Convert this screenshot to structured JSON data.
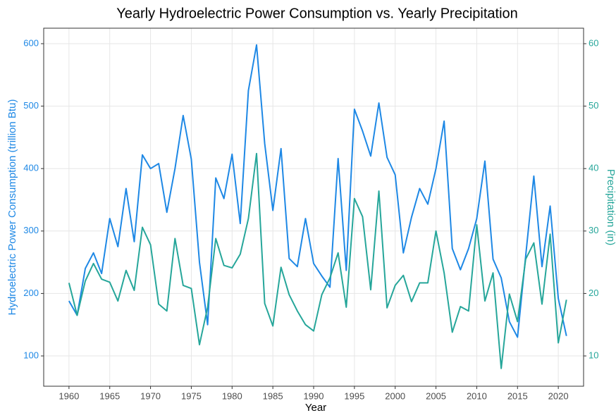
{
  "chart_data": {
    "type": "line",
    "title": "Yearly Hydroelectric Power Consumption vs. Yearly Precipitation",
    "x_label": "Year",
    "y_label": "Hydroelectric Power Consumption (trillion Btu)",
    "y2_label": "Precipitation (in)",
    "x": [
      1960,
      1961,
      1962,
      1963,
      1964,
      1965,
      1966,
      1967,
      1968,
      1969,
      1970,
      1971,
      1972,
      1973,
      1974,
      1975,
      1976,
      1977,
      1978,
      1979,
      1980,
      1981,
      1982,
      1983,
      1984,
      1985,
      1986,
      1987,
      1988,
      1989,
      1990,
      1991,
      1992,
      1993,
      1994,
      1995,
      1996,
      1997,
      1998,
      1999,
      2000,
      2001,
      2002,
      2003,
      2004,
      2005,
      2006,
      2007,
      2008,
      2009,
      2010,
      2011,
      2012,
      2013,
      2014,
      2015,
      2016,
      2017,
      2018,
      2019,
      2020,
      2021
    ],
    "series": [
      {
        "name": "Hydroelectric Power Consumption",
        "color": "#1e88e5",
        "axis": "y",
        "values": [
          188,
          165,
          240,
          265,
          232,
          320,
          275,
          368,
          283,
          422,
          400,
          408,
          330,
          400,
          485,
          415,
          250,
          150,
          385,
          352,
          423,
          312,
          525,
          598,
          440,
          333,
          432,
          256,
          243,
          320,
          248,
          228,
          210,
          416,
          237,
          495,
          460,
          420,
          505,
          418,
          390,
          265,
          322,
          368,
          343,
          400,
          476,
          272,
          238,
          272,
          320,
          412,
          255,
          225,
          155,
          130,
          260,
          388,
          243,
          340,
          192,
          132
        ]
      },
      {
        "name": "Precipitation",
        "color": "#26a69a",
        "axis": "y2",
        "values": [
          21.7,
          16.5,
          22,
          24.8,
          22.3,
          21.8,
          18.8,
          23.7,
          20.5,
          30.6,
          27.8,
          18.3,
          17.2,
          28.8,
          21.3,
          20.8,
          11.8,
          17.8,
          28.8,
          24.5,
          24.1,
          26.3,
          32,
          42.4,
          18.4,
          14.8,
          24.2,
          19.8,
          17.2,
          15,
          14,
          19.8,
          22.5,
          26.5,
          17.8,
          35.2,
          32.3,
          20.6,
          36.4,
          17.7,
          21.3,
          22.9,
          18.7,
          21.7,
          21.7,
          30,
          23.3,
          13.8,
          17.9,
          17.2,
          31,
          18.8,
          23.3,
          8,
          19.9,
          15.5,
          25.5,
          28.1,
          18.3,
          29.5,
          12.1,
          19
        ]
      }
    ],
    "xlim": [
      1956.9,
      2023.1
    ],
    "xticks": [
      1960,
      1965,
      1970,
      1975,
      1980,
      1985,
      1990,
      1995,
      2000,
      2005,
      2010,
      2015,
      2020
    ],
    "ylim": [
      51.5,
      624.8
    ],
    "yticks": [
      100,
      200,
      300,
      400,
      500,
      600
    ],
    "y2lim": [
      5.15,
      62.48
    ],
    "y2ticks": [
      10,
      20,
      30,
      40,
      50,
      60
    ],
    "grid": true
  }
}
